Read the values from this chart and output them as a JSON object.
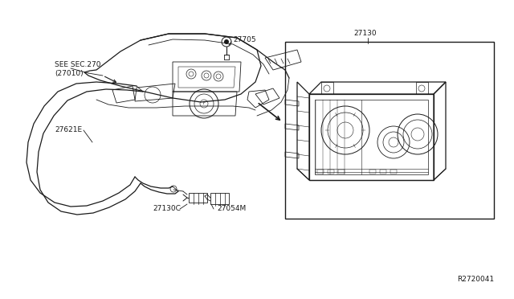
{
  "bg_color": "#ffffff",
  "fig_width": 6.4,
  "fig_height": 3.72,
  "dpi": 100,
  "labels": {
    "see_sec": "SEE SEC.270",
    "see_sec2": "(27010)",
    "part_27705": "27705",
    "part_27621E": "27621E",
    "part_27130": "27130",
    "part_27130C": "27130C",
    "part_27054M": "27054M",
    "ref_code": "R2720041"
  },
  "line_color": "#1a1a1a",
  "text_color": "#1a1a1a",
  "font_size_label": 6.5,
  "font_size_ref": 6.5
}
